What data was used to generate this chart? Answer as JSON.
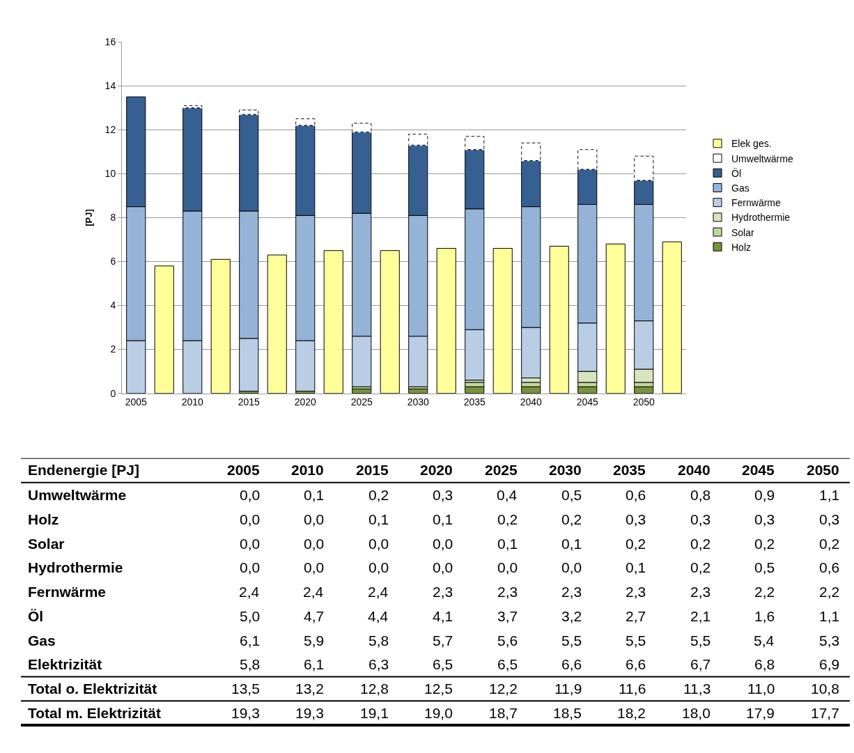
{
  "chart_data": {
    "type": "bar",
    "ylabel": "[PJ]",
    "categories": [
      "2005",
      null,
      "2010",
      null,
      "2015",
      null,
      "2020",
      null,
      "2025",
      null,
      "2030",
      null,
      "2035",
      null,
      "2040",
      null,
      "2045",
      null,
      "2050",
      null
    ],
    "stacked": true,
    "ylim": [
      0,
      16
    ],
    "yticks": [
      0,
      2,
      4,
      6,
      8,
      10,
      12,
      14,
      16
    ],
    "grid": "y",
    "legend": "right",
    "series": [
      {
        "name": "Holz",
        "color": "#77933c",
        "values": [
          0.0,
          null,
          0.0,
          null,
          0.1,
          null,
          0.1,
          null,
          0.2,
          null,
          0.2,
          null,
          0.3,
          null,
          0.3,
          null,
          0.3,
          null,
          0.3,
          null
        ]
      },
      {
        "name": "Solar",
        "color": "#c3d69b",
        "values": [
          0.0,
          null,
          0.0,
          null,
          0.0,
          null,
          0.0,
          null,
          0.1,
          null,
          0.1,
          null,
          0.2,
          null,
          0.2,
          null,
          0.2,
          null,
          0.2,
          null
        ]
      },
      {
        "name": "Hydrothermie",
        "color": "#d7e4bd",
        "values": [
          0.0,
          null,
          0.0,
          null,
          0.0,
          null,
          0.0,
          null,
          0.0,
          null,
          0.0,
          null,
          0.1,
          null,
          0.2,
          null,
          0.5,
          null,
          0.6,
          null
        ]
      },
      {
        "name": "Fernwärme",
        "color": "#b9cde5",
        "values": [
          2.4,
          null,
          2.4,
          null,
          2.4,
          null,
          2.3,
          null,
          2.3,
          null,
          2.3,
          null,
          2.3,
          null,
          2.3,
          null,
          2.2,
          null,
          2.2,
          null
        ]
      },
      {
        "name": "Gas",
        "color": "#95b3d7",
        "values": [
          6.1,
          null,
          5.9,
          null,
          5.8,
          null,
          5.7,
          null,
          5.6,
          null,
          5.5,
          null,
          5.5,
          null,
          5.5,
          null,
          5.4,
          null,
          5.3,
          null
        ]
      },
      {
        "name": "Öl",
        "color": "#376092",
        "values": [
          5.0,
          null,
          4.7,
          null,
          4.4,
          null,
          4.1,
          null,
          3.7,
          null,
          3.2,
          null,
          2.7,
          null,
          2.1,
          null,
          1.6,
          null,
          1.1,
          null
        ]
      },
      {
        "name": "Umweltwärme",
        "color": "#ffffff",
        "line_style": "dashed",
        "values": [
          0.0,
          null,
          0.1,
          null,
          0.2,
          null,
          0.3,
          null,
          0.4,
          null,
          0.5,
          null,
          0.6,
          null,
          0.8,
          null,
          0.9,
          null,
          1.1,
          null
        ]
      },
      {
        "name": "Elek ges.",
        "color": "#ffff99",
        "values": [
          null,
          5.8,
          null,
          6.1,
          null,
          6.3,
          null,
          6.5,
          null,
          6.5,
          null,
          6.6,
          null,
          6.6,
          null,
          6.7,
          null,
          6.8,
          null,
          6.9
        ]
      }
    ],
    "annotations": [
      "Endenergie [PJ]",
      "Umweltwärme",
      "0,0",
      "0,1",
      "0,2",
      "0,3",
      "0,4",
      "0,5",
      "0,6",
      "0,8",
      "0,9",
      "1,1",
      "Holz",
      "0,0",
      "0,0",
      "0,1",
      "0,1",
      "0,2",
      "0,2",
      "0,3",
      "0,3",
      "0,3",
      "0,3",
      "Solar",
      "0,0",
      "0,0",
      "0,0",
      "0,0",
      "0,1",
      "0,1",
      "0,2",
      "0,2",
      "0,2",
      "0,2",
      "Hydrothermie",
      "0,0",
      "0,0",
      "0,0",
      "0,0",
      "0,0",
      "0,0",
      "0,1",
      "0,2",
      "0,5",
      "0,6",
      "Fernwärme",
      "2,4",
      "2,4",
      "2,4",
      "2,3",
      "2,3",
      "2,3",
      "2,3",
      "2,3",
      "2,2",
      "2,2",
      "Öl",
      "5,0",
      "4,7",
      "4,4",
      "4,1",
      "3,7",
      "3,2",
      "2,7",
      "2,1",
      "1,6",
      "1,1",
      "Gas",
      "6,1",
      "5,9",
      "5,8",
      "5,7",
      "5,6",
      "5,5",
      "5,5",
      "5,5",
      "5,4",
      "5,3",
      "Elektrizität",
      "5,8",
      "6,1",
      "6,3",
      "6,5",
      "6,5",
      "6,6",
      "6,6",
      "6,7",
      "6,8",
      "6,9",
      "Total o. Elektrizität",
      "13,5",
      "13,2",
      "12,8",
      "12,5",
      "12,2",
      "11,9",
      "11,6",
      "11,3",
      "11,0",
      "10,8",
      "Total m. Elektrizität",
      "19,3",
      "19,3",
      "19,1",
      "19,0",
      "18,7",
      "18,5",
      "18,2",
      "18,0",
      "17,9",
      "17,7"
    ]
  }
}
